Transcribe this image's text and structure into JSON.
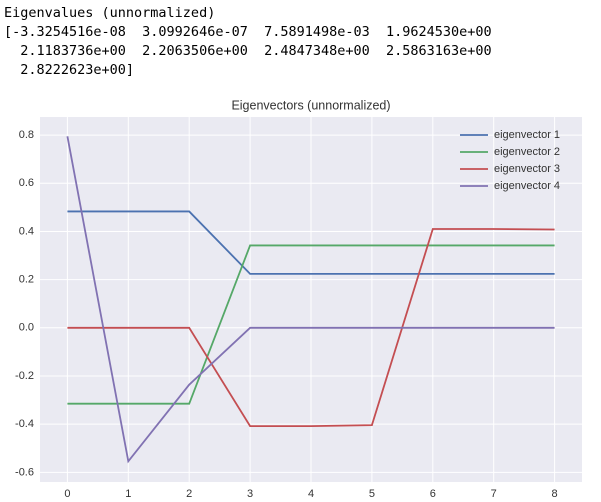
{
  "output_text": [
    "Eigenvalues (unnormalized)",
    "[-3.3254516e-08  3.0992646e-07  7.5891498e-03  1.9624530e+00",
    "  2.1183736e+00  2.2063506e+00  2.4847348e+00  2.5863163e+00",
    "  2.8222623e+00]"
  ],
  "chart_data": {
    "type": "line",
    "title": "Eigenvectors (unnormalized)",
    "x": [
      0,
      1,
      2,
      3,
      4,
      5,
      6,
      7,
      8
    ],
    "series": [
      {
        "name": "eigenvector 1",
        "color": "#4c72b0",
        "values": [
          0.483,
          0.483,
          0.483,
          0.224,
          0.224,
          0.224,
          0.224,
          0.224,
          0.224
        ]
      },
      {
        "name": "eigenvector 2",
        "color": "#55a868",
        "values": [
          -0.315,
          -0.315,
          -0.315,
          0.342,
          0.342,
          0.342,
          0.342,
          0.342,
          0.342
        ]
      },
      {
        "name": "eigenvector 3",
        "color": "#c44e52",
        "values": [
          0,
          0,
          0,
          -0.408,
          -0.408,
          -0.404,
          0.41,
          0.41,
          0.408
        ]
      },
      {
        "name": "eigenvector 4",
        "color": "#8172b2",
        "values": [
          0.795,
          -0.554,
          -0.236,
          0,
          0,
          0,
          0,
          0,
          0
        ]
      }
    ],
    "xlim": [
      -0.45,
      8.45
    ],
    "ylim": [
      -0.64,
      0.875
    ],
    "xticks": [
      0,
      1,
      2,
      3,
      4,
      5,
      6,
      7,
      8
    ],
    "yticks": [
      -0.6,
      -0.4,
      -0.2,
      {
        "value": 0,
        "label": "0.0"
      },
      0.2,
      0.4,
      0.6,
      0.8
    ],
    "grid": true,
    "legend": "upper right"
  }
}
